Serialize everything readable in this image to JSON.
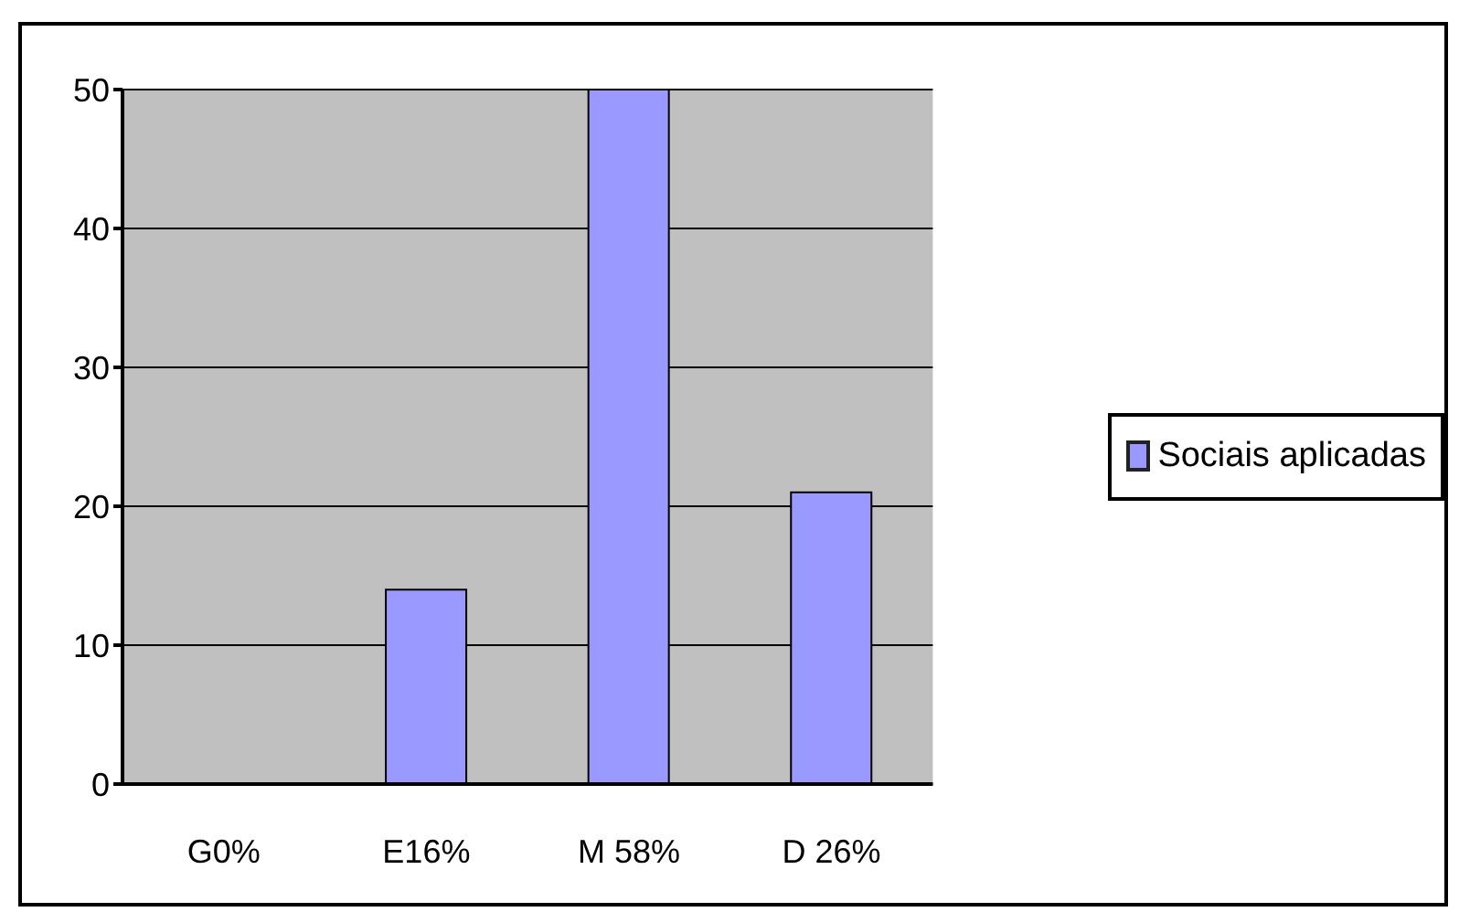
{
  "chart_data": {
    "type": "bar",
    "categories": [
      "G0%",
      "E16%",
      "M 58%",
      "D 26%"
    ],
    "series": [
      {
        "name": "Sociais aplicadas",
        "color": "#9999ff",
        "values": [
          0,
          14,
          50,
          21
        ]
      }
    ],
    "ylim": [
      0,
      50
    ],
    "yticks": [
      0,
      10,
      20,
      30,
      40,
      50
    ],
    "grid": "y",
    "legend": "right"
  }
}
